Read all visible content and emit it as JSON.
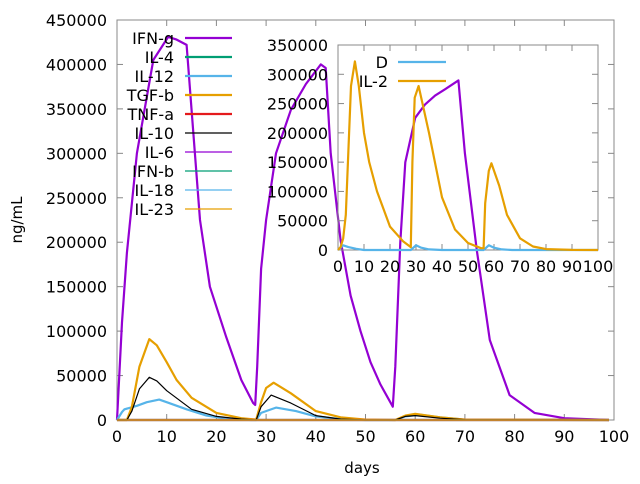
{
  "chart_data": [
    {
      "type": "line",
      "xlabel": "days",
      "ylabel": "ng/mL",
      "xlim": [
        0,
        100
      ],
      "ylim": [
        0,
        450000
      ],
      "xticks": [
        "0",
        "10",
        "20",
        "30",
        "40",
        "50",
        "60",
        "70",
        "80",
        "90",
        "100"
      ],
      "yticks": [
        "0",
        "50000",
        "100000",
        "150000",
        "200000",
        "250000",
        "300000",
        "350000",
        "400000",
        "450000"
      ],
      "grid": false,
      "legend": "top-left",
      "series": [
        {
          "name": "IFN-g",
          "color": "#9400d3",
          "x": [
            0,
            1,
            2,
            4,
            7.3,
            10.3,
            12,
            14,
            16.7,
            18.7,
            22,
            25,
            27.4,
            27.8,
            28.2,
            29,
            30,
            32,
            35,
            38,
            41,
            42,
            43,
            45,
            47,
            49,
            51,
            53,
            55.5,
            56,
            57,
            58,
            60,
            62,
            64,
            66,
            68.7,
            70,
            72.4,
            75,
            79,
            84,
            90,
            99
          ],
          "y": [
            0,
            110000,
            188000,
            300000,
            405000,
            431000,
            428000,
            422000,
            225000,
            150000,
            93000,
            45000,
            19000,
            17000,
            60000,
            170000,
            225000,
            300000,
            349000,
            378000,
            400000,
            396000,
            300000,
            202000,
            140000,
            100000,
            65000,
            40000,
            15000,
            60000,
            200000,
            290000,
            340000,
            355000,
            365000,
            372000,
            382000,
            300000,
            191000,
            90000,
            28000,
            8000,
            2000,
            0
          ]
        },
        {
          "name": "IL-4",
          "color": "#009e73",
          "x": [
            0,
            99
          ],
          "y": [
            0,
            0
          ]
        },
        {
          "name": "IL-12",
          "color": "#56b4e9",
          "x": [
            0,
            1,
            1.5,
            4,
            6,
            8.5,
            10,
            14,
            18,
            22,
            27,
            28,
            29,
            32,
            36,
            40,
            45,
            50,
            56,
            58,
            61,
            65,
            70,
            99
          ],
          "y": [
            0,
            9000,
            12000,
            16000,
            20000,
            23000,
            20000,
            12000,
            5000,
            1500,
            0,
            0,
            8000,
            14000,
            10000,
            4000,
            1000,
            0,
            0,
            4000,
            6000,
            3000,
            500,
            0
          ]
        },
        {
          "name": "TGF-b",
          "color": "#e69f00",
          "x": [
            0,
            2,
            3,
            4.5,
            6.5,
            8,
            10,
            12,
            15,
            20,
            25,
            28,
            29,
            30,
            31.5,
            35,
            40,
            45,
            50,
            56,
            58,
            60,
            65,
            70,
            99
          ],
          "y": [
            0,
            0,
            15000,
            60000,
            91000,
            84000,
            65000,
            45000,
            25000,
            8000,
            2000,
            500,
            20000,
            36000,
            42000,
            30000,
            10000,
            3000,
            500,
            0,
            5000,
            7000,
            3000,
            500,
            0
          ]
        },
        {
          "name": "TNF-a",
          "color": "#e41a1c",
          "x": [
            0,
            99
          ],
          "y": [
            0,
            0
          ]
        },
        {
          "name": "IL-10",
          "color": "#000000",
          "x": [
            0,
            2,
            3,
            4.5,
            6.5,
            8,
            10,
            15,
            20,
            25,
            28,
            29,
            31,
            35,
            40,
            45,
            50,
            56,
            58,
            60,
            65,
            70,
            99
          ],
          "y": [
            0,
            0,
            10000,
            35000,
            48000,
            44000,
            33000,
            12000,
            4000,
            1000,
            0,
            15000,
            28000,
            19000,
            5000,
            1000,
            0,
            0,
            4000,
            5000,
            2000,
            300,
            0
          ]
        },
        {
          "name": "IL-6",
          "color": "#9400d3",
          "x": [
            0,
            99
          ],
          "y": [
            0,
            0
          ]
        },
        {
          "name": "IFN-b",
          "color": "#009e73",
          "x": [
            0,
            99
          ],
          "y": [
            0,
            0
          ]
        },
        {
          "name": "IL-18",
          "color": "#56b4e9",
          "x": [
            0,
            99
          ],
          "y": [
            0,
            0
          ]
        },
        {
          "name": "IL-23",
          "color": "#e69f00",
          "x": [
            0,
            99
          ],
          "y": [
            0,
            0
          ]
        }
      ]
    },
    {
      "type": "line",
      "xlim": [
        0,
        100
      ],
      "ylim": [
        0,
        350000
      ],
      "xticks": [
        "0",
        "10",
        "20",
        "30",
        "40",
        "50",
        "60",
        "70",
        "80",
        "90",
        "100"
      ],
      "yticks": [
        "0",
        "50000",
        "100000",
        "150000",
        "200000",
        "250000",
        "300000",
        "350000"
      ],
      "grid": false,
      "legend": "top-left",
      "series": [
        {
          "name": "D",
          "color": "#56b4e9",
          "x": [
            0,
            1,
            2,
            4,
            7,
            10,
            28,
            30,
            32,
            35,
            40,
            56,
            58,
            60,
            63,
            67,
            100
          ],
          "y": [
            0,
            4000,
            8000,
            5000,
            2000,
            0,
            0,
            8000,
            4000,
            1000,
            0,
            0,
            8000,
            4000,
            1000,
            0,
            0
          ]
        },
        {
          "name": "IL-2",
          "color": "#e69f00",
          "x": [
            0,
            1,
            2,
            3,
            4,
            5,
            6.5,
            8,
            10,
            12,
            15,
            20,
            25,
            28,
            28.6,
            29.5,
            31,
            33,
            35,
            40,
            45,
            50,
            55,
            56,
            56.6,
            58,
            59,
            62,
            65,
            70,
            75,
            80,
            90,
            100
          ],
          "y": [
            0,
            5000,
            20000,
            60000,
            170000,
            280000,
            322000,
            280000,
            200000,
            150000,
            100000,
            40000,
            15000,
            5000,
            150000,
            260000,
            280000,
            240000,
            200000,
            90000,
            35000,
            12000,
            3000,
            3000,
            80000,
            135000,
            148000,
            110000,
            60000,
            20000,
            6000,
            1500,
            200,
            0
          ]
        }
      ]
    }
  ]
}
